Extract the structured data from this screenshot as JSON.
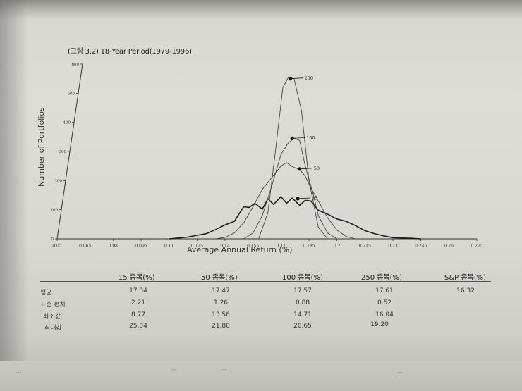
{
  "figure": {
    "caption": "(그림 3.2) 18-Year Period(1979-1996).",
    "ylabel": "Number of Portfolios",
    "xlabel": "Average Annual Return (%)"
  },
  "chart_data": {
    "type": "line",
    "title": "(그림 3.2) 18-Year Period(1979-1996).",
    "xlabel": "Average Annual Return (%)",
    "ylabel": "Number of Portfolios",
    "xlim": [
      0.05,
      0.275
    ],
    "ylim": [
      0,
      600
    ],
    "x_ticks": [
      "0.05",
      "0.065",
      "0.08",
      "0.095",
      "0.11",
      "0.125",
      "0.14",
      "0.155",
      "0.17",
      "0.185",
      "0.2",
      "0.215",
      "0.23",
      "0.245",
      "0.26",
      "0.275"
    ],
    "y_ticks": [
      "0",
      "100",
      "200",
      "300",
      "400",
      "500",
      "600"
    ],
    "grid": false,
    "series": [
      {
        "name": "15",
        "x": [
          0.11,
          0.115,
          0.12,
          0.125,
          0.13,
          0.135,
          0.14,
          0.145,
          0.15,
          0.153,
          0.156,
          0.16,
          0.163,
          0.166,
          0.17,
          0.173,
          0.176,
          0.18,
          0.183,
          0.186,
          0.19,
          0.195,
          0.2,
          0.205,
          0.21,
          0.215,
          0.22,
          0.225,
          0.23,
          0.24,
          0.245
        ],
        "values": [
          0,
          3,
          6,
          12,
          18,
          32,
          48,
          60,
          110,
          108,
          122,
          102,
          138,
          118,
          145,
          122,
          140,
          115,
          132,
          130,
          98,
          85,
          68,
          60,
          45,
          28,
          18,
          10,
          4,
          2,
          0
        ]
      },
      {
        "name": "50",
        "x": [
          0.135,
          0.14,
          0.145,
          0.15,
          0.155,
          0.16,
          0.165,
          0.17,
          0.173,
          0.176,
          0.18,
          0.183,
          0.186,
          0.19,
          0.195,
          0.2,
          0.205,
          0.21
        ],
        "values": [
          0,
          5,
          20,
          55,
          110,
          170,
          210,
          250,
          262,
          248,
          238,
          215,
          175,
          130,
          72,
          30,
          8,
          0
        ]
      },
      {
        "name": "100",
        "x": [
          0.15,
          0.155,
          0.16,
          0.165,
          0.17,
          0.174,
          0.177,
          0.18,
          0.183,
          0.187,
          0.19,
          0.195,
          0.2
        ],
        "values": [
          0,
          20,
          80,
          180,
          290,
          330,
          345,
          338,
          250,
          160,
          80,
          20,
          0
        ]
      },
      {
        "name": "250",
        "x": [
          0.158,
          0.163,
          0.167,
          0.171,
          0.174,
          0.177,
          0.181,
          0.185,
          0.19,
          0.195
        ],
        "values": [
          0,
          90,
          300,
          520,
          555,
          550,
          440,
          200,
          40,
          0
        ]
      }
    ],
    "annotations": [
      {
        "label": "250",
        "x": 0.175,
        "y": 550
      },
      {
        "label": "100",
        "x": 0.176,
        "y": 345
      },
      {
        "label": "50",
        "x": 0.18,
        "y": 240
      },
      {
        "label": "15",
        "x": 0.179,
        "y": 138
      }
    ]
  },
  "stats_table": {
    "headers": [
      "15 종목(%)",
      "50 종목(%)",
      "100 종목(%)",
      "250 종목(%)",
      "S&P 종목(%)"
    ],
    "rows": [
      {
        "label": "평균",
        "values": [
          "17.34",
          "17.47",
          "17.57",
          "17.61",
          "16.32"
        ]
      },
      {
        "label": "표준 편차",
        "values": [
          "2.21",
          "1.26",
          "0.88",
          "0.52",
          ""
        ]
      },
      {
        "label": "최소값",
        "values": [
          "8.77",
          "13.56",
          "14.71",
          "16.04",
          ""
        ]
      },
      {
        "label": "최대값",
        "values": [
          "25.04",
          "21.80",
          "20.65",
          "19.20",
          ""
        ]
      }
    ]
  }
}
